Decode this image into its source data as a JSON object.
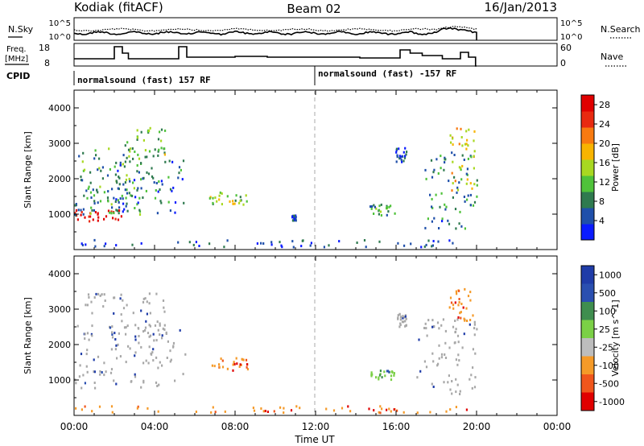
{
  "header": {
    "station": "Kodiak (fitACF)",
    "beam": "Beam 02",
    "date": "16/Jan/2013"
  },
  "summary": {
    "nsky_label": "N.Sky",
    "nsearch_label": "N.Search",
    "left_ticks": [
      "10^5",
      "10^0"
    ],
    "right_ticks": [
      "10^5",
      "10^0"
    ],
    "freq_label": "Freq.",
    "freq_unit": "[MHz]",
    "freq_ticks": [
      "18",
      "8"
    ],
    "nave_label": "Nave",
    "nave_ticks": [
      "60",
      "0"
    ],
    "cpid_label": "CPID",
    "cpid_segments": [
      "normalsound (fast) 157 RF",
      "normalsound (fast) -157 RF"
    ]
  },
  "x_axis": {
    "label": "Time UT",
    "ticks": [
      "00:00",
      "04:00",
      "08:00",
      "12:00",
      "16:00",
      "20:00",
      "00:00"
    ]
  },
  "colors": {
    "power": [
      "#0a1bff",
      "#1f4faa",
      "#2f7a4f",
      "#4fc23a",
      "#a8d821",
      "#f8b400",
      "#f87a10",
      "#e82a10",
      "#e00000"
    ],
    "velocity": [
      "#e00000",
      "#f0561c",
      "#f59a28",
      "#bdbdbd",
      "#7bd046",
      "#3f8e4f",
      "#2a4fb0",
      "#1f3ca8"
    ],
    "ground": "#a8a8a8"
  },
  "chart_data": [
    {
      "type": "heatmap",
      "title": "Power",
      "xlabel": "Time UT",
      "ylabel": "Slant Range [km]",
      "xlim": [
        0,
        24
      ],
      "ylim": [
        0,
        4500
      ],
      "y_ticks": [
        "1000",
        "2000",
        "3000",
        "4000"
      ],
      "colorbar": {
        "label": "Power [dB]",
        "ticks": [
          "4",
          "8",
          "12",
          "16",
          "20",
          "24",
          "28"
        ],
        "range": [
          0,
          30
        ]
      },
      "regions": [
        {
          "t": [
            0.0,
            2.4
          ],
          "r": [
            800,
            1150
          ],
          "v": 28
        },
        {
          "t": [
            0.0,
            2.6
          ],
          "r": [
            1050,
            1800
          ],
          "v": 8
        },
        {
          "t": [
            0.0,
            3.5
          ],
          "r": [
            1000,
            2900
          ],
          "v": 10
        },
        {
          "t": [
            2.0,
            5.5
          ],
          "r": [
            1050,
            2600
          ],
          "v": 6
        },
        {
          "t": [
            2.5,
            4.6
          ],
          "r": [
            2400,
            3500
          ],
          "v": 12
        },
        {
          "t": [
            6.7,
            8.6
          ],
          "r": [
            1300,
            1650
          ],
          "v": 14
        },
        {
          "t": [
            10.8,
            11.0
          ],
          "r": [
            850,
            1000
          ],
          "v": 4
        },
        {
          "t": [
            15.9,
            16.5
          ],
          "r": [
            2500,
            2900
          ],
          "v": 4
        },
        {
          "t": [
            14.6,
            15.9
          ],
          "r": [
            1000,
            1300
          ],
          "v": 10
        },
        {
          "t": [
            17.4,
            20.0
          ],
          "r": [
            600,
            2800
          ],
          "v": 8
        },
        {
          "t": [
            18.6,
            19.9
          ],
          "r": [
            1700,
            3500
          ],
          "v": 18
        },
        {
          "t": [
            0.0,
            20.0
          ],
          "r": [
            100,
            300
          ],
          "v": 4
        }
      ]
    },
    {
      "type": "heatmap",
      "title": "Velocity",
      "xlabel": "Time UT",
      "ylabel": "Slant Range [km]",
      "xlim": [
        0,
        24
      ],
      "ylim": [
        0,
        4500
      ],
      "y_ticks": [
        "1000",
        "2000",
        "3000",
        "4000"
      ],
      "colorbar": {
        "label": "Velocity [m s^-1]",
        "ticks": [
          "1000",
          "500",
          "100",
          "25",
          "-25",
          "-100",
          "-500",
          "-1000"
        ]
      },
      "regions": [
        {
          "t": [
            0.0,
            5.5
          ],
          "r": [
            800,
            2600
          ],
          "v": 0
        },
        {
          "t": [
            0.5,
            4.6
          ],
          "r": [
            2200,
            3500
          ],
          "v": 0
        },
        {
          "t": [
            6.7,
            8.6
          ],
          "r": [
            1300,
            1650
          ],
          "v": -300
        },
        {
          "t": [
            16.0,
            16.5
          ],
          "r": [
            2500,
            2900
          ],
          "v": 0
        },
        {
          "t": [
            14.6,
            15.9
          ],
          "r": [
            1000,
            1300
          ],
          "v": 150
        },
        {
          "t": [
            17.0,
            20.0
          ],
          "r": [
            600,
            2800
          ],
          "v": 0
        },
        {
          "t": [
            18.6,
            19.8
          ],
          "r": [
            2700,
            3600
          ],
          "v": -150
        },
        {
          "t": [
            0.0,
            20.0
          ],
          "r": [
            100,
            300
          ],
          "v": -50
        }
      ]
    }
  ]
}
